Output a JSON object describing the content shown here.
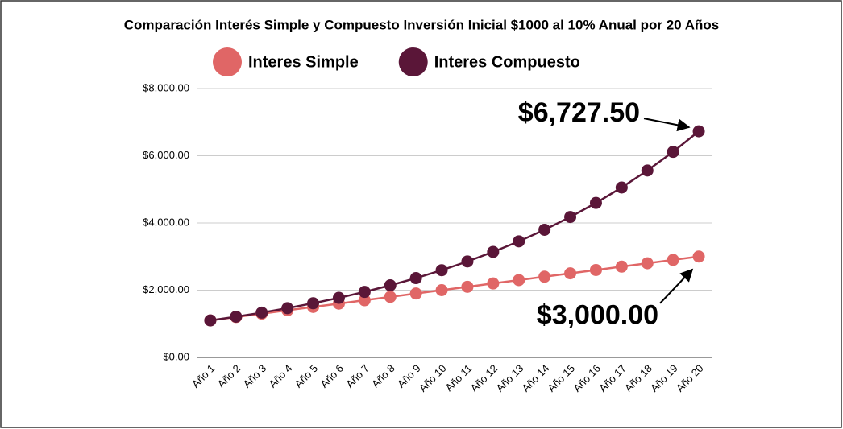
{
  "chart_data": {
    "type": "line",
    "title": "Comparación Interés Simple y Compuesto Inversión Inicial $1000 al 10% Anual por 20 Años",
    "categories": [
      "Año 1",
      "Año 2",
      "Año 3",
      "Año 4",
      "Año 5",
      "Año 6",
      "Año 7",
      "Año 8",
      "Año 9",
      "Año 10",
      "Año 11",
      "Año 12",
      "Año 13",
      "Año 14",
      "Año 15",
      "Año 16",
      "Año 17",
      "Año 18",
      "Año 19",
      "Año 20"
    ],
    "series": [
      {
        "name": "Interes Simple",
        "color": "#e06666",
        "values": [
          1100,
          1200,
          1300,
          1400,
          1500,
          1600,
          1700,
          1800,
          1900,
          2000,
          2100,
          2200,
          2300,
          2400,
          2500,
          2600,
          2700,
          2800,
          2900,
          3000
        ],
        "value_labels": [
          null,
          null,
          null,
          null,
          null,
          null,
          null,
          null,
          null,
          null,
          null,
          null,
          null,
          null,
          null,
          null,
          null,
          null,
          null,
          "$3,000.00"
        ]
      },
      {
        "name": "Interes Compuesto",
        "color": "#5a1638",
        "values": [
          1100,
          1210,
          1331,
          1464.1,
          1610.51,
          1771.56,
          1948.72,
          2143.59,
          2357.95,
          2593.74,
          2853.12,
          3138.43,
          3452.27,
          3797.5,
          4177.25,
          4594.97,
          5054.47,
          5559.92,
          6115.91,
          6727.5
        ],
        "value_labels": [
          null,
          null,
          null,
          null,
          null,
          null,
          null,
          null,
          null,
          null,
          null,
          null,
          null,
          null,
          null,
          null,
          null,
          null,
          null,
          "$6,727.50"
        ]
      }
    ],
    "ylim": [
      0,
      8000
    ],
    "yticks": [
      {
        "value": 0,
        "label": "$0.00"
      },
      {
        "value": 2000,
        "label": "$2,000.00"
      },
      {
        "value": 4000,
        "label": "$4,000.00"
      },
      {
        "value": 6000,
        "label": "$6,000.00"
      },
      {
        "value": 8000,
        "label": "$8,000.00"
      }
    ],
    "grid": true,
    "legend": "top"
  }
}
